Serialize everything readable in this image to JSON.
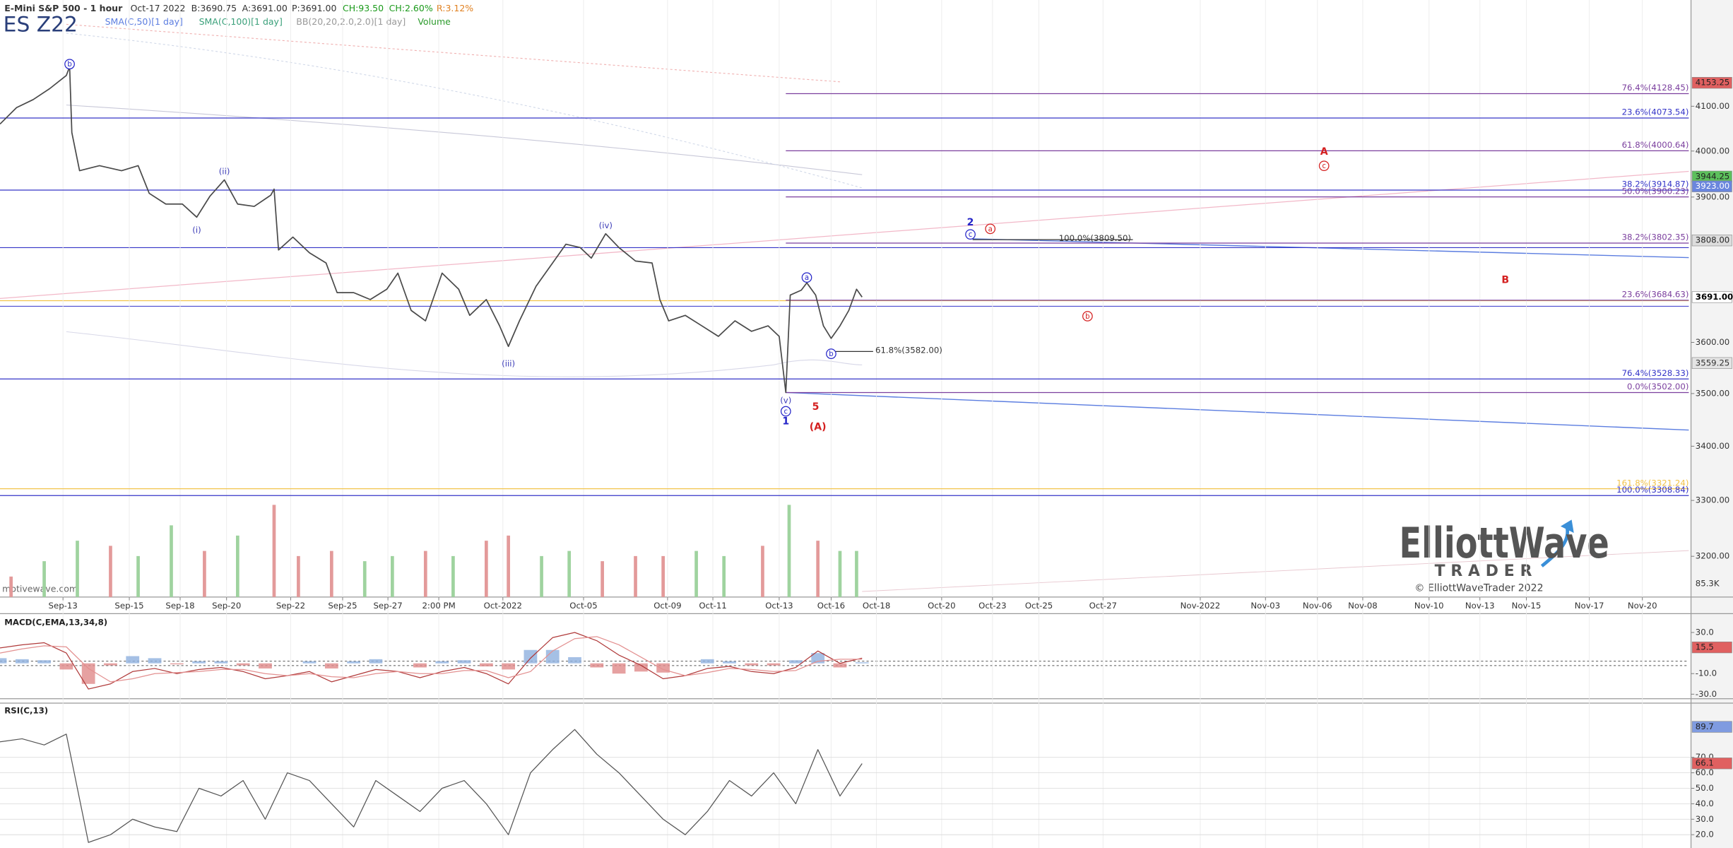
{
  "header": {
    "date": "Oct-17 2022",
    "bid": "B:3690.75",
    "ask": "A:3691.00",
    "last": "P:3691.00",
    "change": "CH:93.50",
    "change_pct": "CH:2.60%",
    "range": "R:3.12%",
    "symbol": "ES Z22",
    "indicators": [
      "SMA(C,50)[1 day]",
      "SMA(C,100)[1 day]",
      "BB(20,20,2.0,2.0)[1 day]",
      "Volume"
    ]
  },
  "logo": {
    "name": "ElliottWave",
    "sub": "TRADER",
    "copyright": "© ElliottWaveTrader 2022",
    "watermark": "motivewave.com"
  },
  "chart_data": [
    {
      "type": "line",
      "title": "E-Mini S&P 500 - 1 hour",
      "log": true,
      "grid": true,
      "xlim": [
        0,
        1530
      ],
      "ylim": [
        3129,
        4347
      ],
      "x": [
        0,
        15,
        30,
        45,
        60,
        63,
        65,
        72,
        90,
        110,
        125,
        135,
        150,
        165,
        178,
        190,
        203,
        215,
        230,
        245,
        248,
        252,
        265,
        280,
        295,
        305,
        320,
        335,
        350,
        360,
        372,
        385,
        400,
        415,
        425,
        440,
        452,
        460,
        470,
        485,
        500,
        512,
        525,
        535,
        548,
        560,
        575,
        590,
        597,
        605,
        620,
        635,
        650,
        665,
        680,
        695,
        705,
        711,
        715,
        725,
        730,
        738,
        745,
        752,
        760,
        768,
        775,
        780
      ],
      "series": [
        {
          "color": "#4a4a4a",
          "values": [
            4060,
            4097,
            4115,
            4140,
            4170,
            4190,
            4041,
            3957,
            3968,
            3957,
            3968,
            3908,
            3885,
            3885,
            3857,
            3902,
            3937,
            3885,
            3880,
            3904,
            3917,
            3788,
            3815,
            3782,
            3761,
            3700,
            3700,
            3686,
            3707,
            3740,
            3664,
            3643,
            3740,
            3707,
            3654,
            3686,
            3633,
            3592,
            3643,
            3713,
            3761,
            3800,
            3793,
            3771,
            3822,
            3793,
            3765,
            3761,
            3686,
            3643,
            3654,
            3633,
            3612,
            3643,
            3622,
            3633,
            3612,
            3502,
            3695,
            3705,
            3720,
            3695,
            3633,
            3608,
            3633,
            3664,
            3707,
            3691
          ]
        }
      ],
      "yticks": [
        {
          "value": 3200,
          "label": "3200.00"
        },
        {
          "value": 3300,
          "label": "3300.00"
        },
        {
          "value": 3400,
          "label": "3400.00"
        },
        {
          "value": 3500,
          "label": "3500.00"
        },
        {
          "value": 3600,
          "label": "3600.00"
        },
        {
          "value": 3900,
          "label": "3900.00"
        },
        {
          "value": 4000,
          "label": "4000.00"
        },
        {
          "value": 4100,
          "label": "4100.00"
        }
      ],
      "xticks": [
        {
          "value": 57,
          "label": "Sep-13"
        },
        {
          "value": 117,
          "label": "Sep-15"
        },
        {
          "value": 163,
          "label": "Sep-18"
        },
        {
          "value": 205,
          "label": "Sep-20"
        },
        {
          "value": 263,
          "label": "Sep-22"
        },
        {
          "value": 310,
          "label": "Sep-25"
        },
        {
          "value": 351,
          "label": "Sep-27"
        },
        {
          "value": 397,
          "label": "2:00 PM"
        },
        {
          "value": 455,
          "label": "Oct-2022"
        },
        {
          "value": 528,
          "label": "Oct-05"
        },
        {
          "value": 604,
          "label": "Oct-09"
        },
        {
          "value": 645,
          "label": "Oct-11"
        },
        {
          "value": 705,
          "label": "Oct-13"
        },
        {
          "value": 752,
          "label": "Oct-16"
        },
        {
          "value": 793,
          "label": "Oct-18"
        },
        {
          "value": 852,
          "label": "Oct-20"
        },
        {
          "value": 898,
          "label": "Oct-23"
        },
        {
          "value": 940,
          "label": "Oct-25"
        },
        {
          "value": 998,
          "label": "Oct-27"
        },
        {
          "value": 1086,
          "label": "Nov-2022"
        },
        {
          "value": 1145,
          "label": "Nov-03"
        },
        {
          "value": 1192,
          "label": "Nov-06"
        },
        {
          "value": 1233,
          "label": "Nov-08"
        },
        {
          "value": 1293,
          "label": "Nov-10"
        },
        {
          "value": 1339,
          "label": "Nov-13"
        },
        {
          "value": 1381,
          "label": "Nov-15"
        },
        {
          "value": 1438,
          "label": "Nov-17"
        },
        {
          "value": 1486,
          "label": "Nov-20"
        }
      ],
      "levels": [
        {
          "label": "76.4%(4128.45)",
          "value": 4128.45,
          "color": "#7b3f9e"
        },
        {
          "label": "23.6%(4073.54)",
          "value": 4073.54,
          "color": "#3434c8"
        },
        {
          "label": "61.8%(4000.64)",
          "value": 4000.64,
          "color": "#7b3f9e"
        },
        {
          "label": "38.2%(3914.87)",
          "value": 3914.87,
          "color": "#3434c8"
        },
        {
          "label": "50.0%(3900.23)",
          "value": 3900.23,
          "color": "#7b3f9e"
        },
        {
          "label": "100.0%(3809.50)",
          "value": 3809.5,
          "color": "#333333"
        },
        {
          "label": "38.2%(3802.35)",
          "value": 3802.35,
          "color": "#7b3f9e"
        },
        {
          "label": "23.6%(3684.63)",
          "value": 3684.63,
          "color": "#7b3f9e"
        },
        {
          "label": "61.8%(3582.00)",
          "value": 3582.0,
          "color": "#333333"
        },
        {
          "label": "76.4%(3528.33)",
          "value": 3528.33,
          "color": "#3434c8"
        },
        {
          "label": "0.0%(3502.00)",
          "value": 3502.0,
          "color": "#7b3f9e"
        },
        {
          "label": "161.8%(3321.24)",
          "value": 3321.24,
          "color": "#f2c34a"
        },
        {
          "label": "100.0%(3308.84)",
          "value": 3308.84,
          "color": "#3434c8"
        }
      ],
      "markers": [
        {
          "value": 4153.25,
          "label": "4153.25",
          "bg": "#e06060",
          "fg": "#222222"
        },
        {
          "value": 3944.25,
          "label": "3944.25",
          "bg": "#5cc05c",
          "fg": "#222222"
        },
        {
          "value": 3923.0,
          "label": "3923.00",
          "bg": "#6a86dd",
          "fg": "#ffffff"
        },
        {
          "value": 3808.0,
          "label": "3808.00",
          "bg": "#dddddd",
          "fg": "#222222"
        },
        {
          "value": 3691.0,
          "label": "3691.00",
          "bg": "#ffffff",
          "fg": "#000000"
        },
        {
          "value": 3559.25,
          "label": "3559.25",
          "bg": "#e4e4e4",
          "fg": "#333333"
        }
      ],
      "wave_labels": [
        {
          "text": "b",
          "color": "#2525c8",
          "circled": true,
          "bold": false
        },
        {
          "text": "(i)",
          "color": "#3d3db8",
          "circled": false,
          "bold": false
        },
        {
          "text": "(ii)",
          "color": "#3d3db8",
          "circled": false,
          "bold": false
        },
        {
          "text": "(iii)",
          "color": "#3d3db8",
          "circled": false,
          "bold": false
        },
        {
          "text": "(iv)",
          "color": "#3d3db8",
          "circled": false,
          "bold": false
        },
        {
          "text": "(v)",
          "color": "#3d3db8",
          "circled": false,
          "bold": false
        },
        {
          "text": "c",
          "color": "#2525c8",
          "circled": true,
          "bold": false
        },
        {
          "text": "1",
          "color": "#2525c8",
          "circled": false,
          "bold": true
        },
        {
          "text": "a",
          "color": "#2525c8",
          "circled": true,
          "bold": false
        },
        {
          "text": "b",
          "color": "#2525c8",
          "circled": true,
          "bold": false
        },
        {
          "text": "2",
          "color": "#2525c8",
          "circled": false,
          "bold": true
        },
        {
          "text": "c",
          "color": "#2525c8",
          "circled": true,
          "bold": false
        },
        {
          "text": "a",
          "color": "#d42020",
          "circled": true,
          "bold": false
        },
        {
          "text": "5",
          "color": "#d42020",
          "circled": false,
          "bold": true
        },
        {
          "text": "(A)",
          "color": "#d42020",
          "circled": false,
          "bold": true
        },
        {
          "text": "A",
          "color": "#d42020",
          "circled": false,
          "bold": true
        },
        {
          "text": "c",
          "color": "#d42020",
          "circled": true,
          "bold": false
        },
        {
          "text": "B",
          "color": "#d42020",
          "circled": false,
          "bold": true
        },
        {
          "text": "b",
          "color": "#d42020",
          "circled": true,
          "bold": false
        }
      ]
    },
    {
      "type": "bar",
      "label": "85.3K",
      "ylim": [
        0,
        95
      ],
      "x": [
        10,
        40,
        70,
        100,
        125,
        155,
        185,
        215,
        248,
        270,
        300,
        330,
        355,
        385,
        410,
        440,
        460,
        490,
        515,
        545,
        575,
        600,
        630,
        655,
        690,
        714,
        740,
        760,
        775
      ],
      "values": [
        20,
        35,
        55,
        50,
        40,
        70,
        45,
        60,
        90,
        40,
        45,
        35,
        40,
        45,
        40,
        55,
        60,
        40,
        45,
        35,
        40,
        40,
        45,
        40,
        50,
        90,
        55,
        45,
        45
      ],
      "colors": [
        "#e39a9a",
        "#9fd39f",
        "#9fd39f",
        "#e39a9a",
        "#9fd39f",
        "#9fd39f",
        "#e39a9a",
        "#9fd39f",
        "#e39a9a",
        "#e39a9a",
        "#e39a9a",
        "#9fd39f",
        "#9fd39f",
        "#e39a9a",
        "#9fd39f",
        "#e39a9a",
        "#e39a9a",
        "#9fd39f",
        "#9fd39f",
        "#e39a9a",
        "#e39a9a",
        "#e39a9a",
        "#9fd39f",
        "#9fd39f",
        "#e39a9a",
        "#9fd39f",
        "#e39a9a",
        "#9fd39f",
        "#9fd39f"
      ]
    },
    {
      "type": "line",
      "title": "MACD(C,EMA,13,34,8)",
      "ylim": [
        -32.3,
        46.2
      ],
      "yticks": [
        {
          "value": 30,
          "label": "30.0"
        },
        {
          "value": -10,
          "label": "-10.0"
        },
        {
          "value": -30,
          "label": "-30.0"
        }
      ],
      "x": [
        0,
        20,
        40,
        60,
        80,
        100,
        120,
        140,
        160,
        180,
        200,
        220,
        240,
        260,
        280,
        300,
        320,
        340,
        360,
        380,
        400,
        420,
        440,
        460,
        480,
        500,
        520,
        540,
        560,
        580,
        600,
        620,
        640,
        660,
        680,
        700,
        720,
        740,
        760,
        780
      ],
      "series": [
        {
          "color": "#b03a3a",
          "values": [
            15,
            18,
            20,
            10,
            -25,
            -20,
            -8,
            -5,
            -10,
            -6,
            -4,
            -8,
            -15,
            -12,
            -8,
            -18,
            -12,
            -6,
            -8,
            -14,
            -8,
            -4,
            -10,
            -20,
            5,
            25,
            30,
            22,
            8,
            -2,
            -15,
            -12,
            -5,
            -3,
            -8,
            -10,
            -4,
            12,
            0,
            5
          ]
        },
        {
          "color": "#e39090",
          "values": [
            10,
            14,
            17,
            16,
            -5,
            -18,
            -15,
            -10,
            -9,
            -8,
            -6,
            -6,
            -10,
            -12,
            -10,
            -13,
            -14,
            -10,
            -8,
            -10,
            -10,
            -7,
            -7,
            -14,
            -8,
            12,
            24,
            26,
            18,
            6,
            -6,
            -12,
            -9,
            -5,
            -6,
            -8,
            -7,
            2,
            4,
            4
          ]
        }
      ],
      "histogram": [
        5,
        4,
        3,
        -6,
        -20,
        -2,
        7,
        5,
        -1,
        2,
        2,
        -2,
        -5,
        0,
        2,
        -5,
        2,
        4,
        0,
        -4,
        2,
        3,
        -3,
        -6,
        13,
        13,
        6,
        -4,
        -10,
        -8,
        -9,
        0,
        4,
        2,
        -2,
        -2,
        3,
        10,
        -4,
        1
      ],
      "bar_colors": [
        "#8fb0de",
        "#e08a8a"
      ],
      "markers": [
        {
          "value": 15.5,
          "label": "15.5",
          "bg": "#e06060",
          "fg": "#222222"
        }
      ]
    },
    {
      "type": "line",
      "title": "RSI(C,13)",
      "ylim": [
        11.4,
        104.3
      ],
      "yticks": [
        {
          "value": 20,
          "label": "20.0"
        },
        {
          "value": 30,
          "label": "30.0"
        },
        {
          "value": 40,
          "label": "40.0"
        },
        {
          "value": 50,
          "label": "50.0"
        },
        {
          "value": 60,
          "label": "60.0"
        },
        {
          "value": 70,
          "label": "70.0"
        }
      ],
      "x": [
        0,
        20,
        40,
        60,
        80,
        100,
        120,
        140,
        160,
        180,
        200,
        220,
        240,
        260,
        280,
        300,
        320,
        340,
        360,
        380,
        400,
        420,
        440,
        460,
        480,
        500,
        520,
        540,
        560,
        580,
        600,
        620,
        640,
        660,
        680,
        700,
        720,
        740,
        760,
        780
      ],
      "series": [
        {
          "color": "#555555",
          "values": [
            80,
            82,
            78,
            85,
            15,
            20,
            30,
            25,
            22,
            50,
            45,
            55,
            30,
            60,
            55,
            40,
            25,
            55,
            45,
            35,
            50,
            55,
            40,
            20,
            60,
            75,
            88,
            72,
            60,
            45,
            30,
            20,
            35,
            55,
            45,
            60,
            40,
            75,
            45,
            66
          ]
        }
      ],
      "markers": [
        {
          "value": 89.7,
          "label": "89.7",
          "bg": "#7f9be0",
          "fg": "#222222"
        },
        {
          "value": 66.1,
          "label": "66.1",
          "bg": "#e06060",
          "fg": "#222222"
        }
      ]
    }
  ]
}
